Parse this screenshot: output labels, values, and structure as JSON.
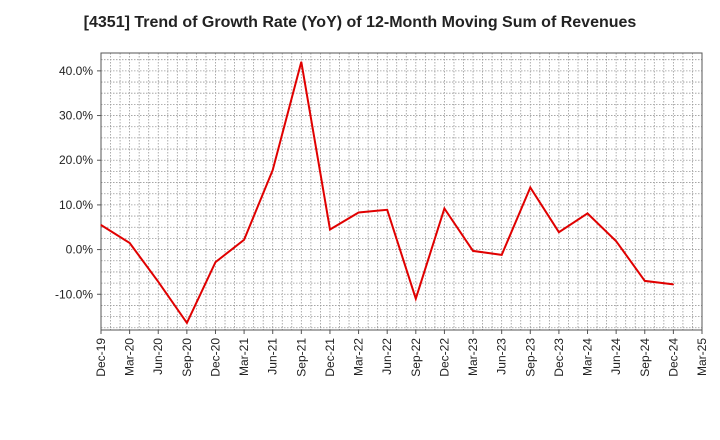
{
  "chart_data": {
    "type": "line",
    "title": "[4351]  Trend of Growth Rate (YoY) of 12-Month Moving Sum of Revenues",
    "xlabel": "",
    "ylabel": "",
    "y_tick_values": [
      -10,
      0,
      10,
      20,
      30,
      40
    ],
    "y_tick_labels": [
      "-10.0%",
      "0.0%",
      "10.0%",
      "20.0%",
      "30.0%",
      "40.0%"
    ],
    "ylim": [
      -18,
      44
    ],
    "x_tick_labels": [
      "Dec-19",
      "Mar-20",
      "Jun-20",
      "Sep-20",
      "Dec-20",
      "Mar-21",
      "Jun-21",
      "Sep-21",
      "Dec-21",
      "Mar-22",
      "Jun-22",
      "Sep-22",
      "Dec-22",
      "Mar-23",
      "Jun-23",
      "Sep-23",
      "Dec-23",
      "Mar-24",
      "Jun-24",
      "Sep-24",
      "Dec-24",
      "Mar-25"
    ],
    "grid": true,
    "line_color": "#e00000",
    "series": [
      {
        "x": [
          "Dec-19",
          "Mar-20",
          "Jun-20",
          "Sep-20",
          "Dec-20",
          "Mar-21",
          "Jun-21",
          "Sep-21",
          "Dec-21",
          "Mar-22",
          "Jun-22",
          "Sep-22",
          "Dec-22",
          "Mar-23",
          "Jun-23",
          "Sep-23",
          "Dec-23",
          "Mar-24",
          "Jun-24",
          "Sep-24",
          "Dec-24"
        ],
        "values": [
          5.5,
          1.5,
          -7.2,
          -16.4,
          -2.8,
          2.2,
          17.8,
          42.0,
          4.5,
          8.3,
          8.9,
          -11.0,
          9.2,
          -0.3,
          -1.2,
          13.9,
          3.9,
          8.1,
          1.9,
          -7.0,
          -7.8
        ]
      }
    ]
  }
}
